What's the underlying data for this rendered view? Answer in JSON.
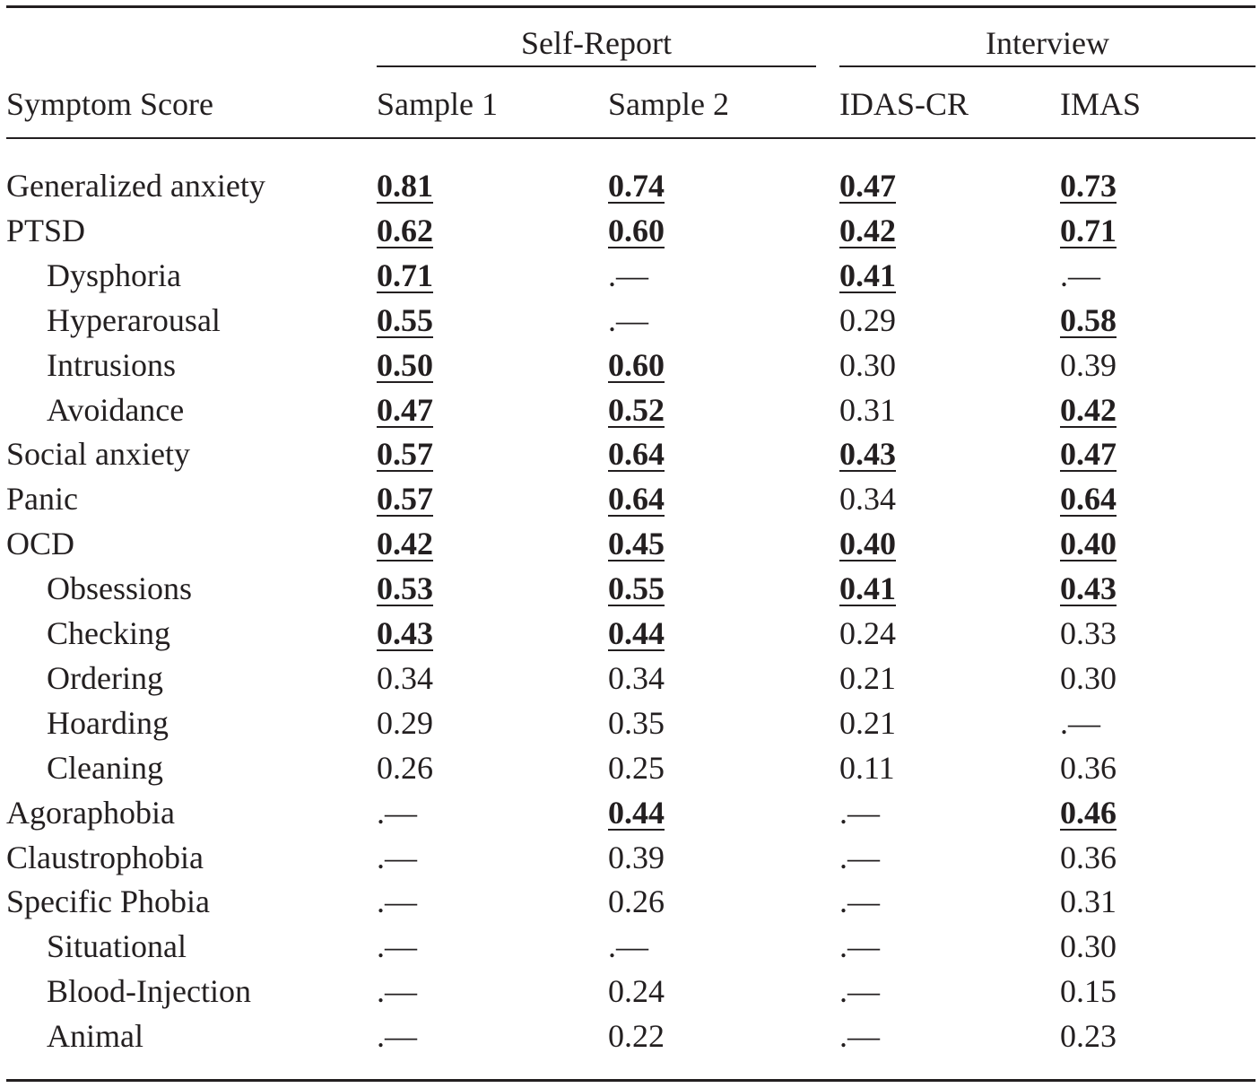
{
  "table": {
    "groups": [
      {
        "label": "Self-Report",
        "span": [
          1,
          2
        ]
      },
      {
        "label": "Interview",
        "span": [
          3,
          4
        ]
      }
    ],
    "columns": [
      "Symptom Score",
      "Sample 1",
      "Sample 2",
      "IDAS-CR",
      "IMAS"
    ],
    "rows": [
      {
        "label": "Generalized anxiety",
        "indent": false,
        "cells": [
          "0.81",
          "0.74",
          "0.47",
          "0.73"
        ],
        "bold": [
          true,
          true,
          true,
          true
        ]
      },
      {
        "label": "PTSD",
        "indent": false,
        "cells": [
          "0.62",
          "0.60",
          "0.42",
          "0.71"
        ],
        "bold": [
          true,
          true,
          true,
          true
        ]
      },
      {
        "label": "Dysphoria",
        "indent": true,
        "cells": [
          "0.71",
          ".—",
          "0.41",
          ".—"
        ],
        "bold": [
          true,
          false,
          true,
          false
        ]
      },
      {
        "label": "Hyperarousal",
        "indent": true,
        "cells": [
          "0.55",
          ".—",
          "0.29",
          "0.58"
        ],
        "bold": [
          true,
          false,
          false,
          true
        ]
      },
      {
        "label": "Intrusions",
        "indent": true,
        "cells": [
          "0.50",
          "0.60",
          "0.30",
          "0.39"
        ],
        "bold": [
          true,
          true,
          false,
          false
        ]
      },
      {
        "label": "Avoidance",
        "indent": true,
        "cells": [
          "0.47",
          "0.52",
          "0.31",
          "0.42"
        ],
        "bold": [
          true,
          true,
          false,
          true
        ]
      },
      {
        "label": "Social anxiety",
        "indent": false,
        "cells": [
          "0.57",
          "0.64",
          "0.43",
          "0.47"
        ],
        "bold": [
          true,
          true,
          true,
          true
        ]
      },
      {
        "label": "Panic",
        "indent": false,
        "cells": [
          "0.57",
          "0.64",
          "0.34",
          "0.64"
        ],
        "bold": [
          true,
          true,
          false,
          true
        ]
      },
      {
        "label": "OCD",
        "indent": false,
        "cells": [
          "0.42",
          "0.45",
          "0.40",
          "0.40"
        ],
        "bold": [
          true,
          true,
          true,
          true
        ]
      },
      {
        "label": "Obsessions",
        "indent": true,
        "cells": [
          "0.53",
          "0.55",
          "0.41",
          "0.43"
        ],
        "bold": [
          true,
          true,
          true,
          true
        ]
      },
      {
        "label": "Checking",
        "indent": true,
        "cells": [
          "0.43",
          "0.44",
          "0.24",
          "0.33"
        ],
        "bold": [
          true,
          true,
          false,
          false
        ]
      },
      {
        "label": "Ordering",
        "indent": true,
        "cells": [
          "0.34",
          "0.34",
          "0.21",
          "0.30"
        ],
        "bold": [
          false,
          false,
          false,
          false
        ]
      },
      {
        "label": "Hoarding",
        "indent": true,
        "cells": [
          "0.29",
          "0.35",
          "0.21",
          ".—"
        ],
        "bold": [
          false,
          false,
          false,
          false
        ]
      },
      {
        "label": "Cleaning",
        "indent": true,
        "cells": [
          "0.26",
          "0.25",
          "0.11",
          "0.36"
        ],
        "bold": [
          false,
          false,
          false,
          false
        ]
      },
      {
        "label": "Agoraphobia",
        "indent": false,
        "cells": [
          ".—",
          "0.44",
          ".—",
          "0.46"
        ],
        "bold": [
          false,
          true,
          false,
          true
        ]
      },
      {
        "label": "Claustrophobia",
        "indent": false,
        "cells": [
          ".—",
          "0.39",
          ".—",
          "0.36"
        ],
        "bold": [
          false,
          false,
          false,
          false
        ]
      },
      {
        "label": "Specific Phobia",
        "indent": false,
        "cells": [
          ".—",
          "0.26",
          ".—",
          "0.31"
        ],
        "bold": [
          false,
          false,
          false,
          false
        ]
      },
      {
        "label": "Situational",
        "indent": true,
        "cells": [
          ".—",
          ".—",
          ".—",
          "0.30"
        ],
        "bold": [
          false,
          false,
          false,
          false
        ]
      },
      {
        "label": "Blood-Injection",
        "indent": true,
        "cells": [
          ".—",
          "0.24",
          ".—",
          "0.15"
        ],
        "bold": [
          false,
          false,
          false,
          false
        ]
      },
      {
        "label": "Animal",
        "indent": true,
        "cells": [
          ".—",
          "0.22",
          ".—",
          "0.23"
        ],
        "bold": [
          false,
          false,
          false,
          false
        ]
      }
    ]
  }
}
